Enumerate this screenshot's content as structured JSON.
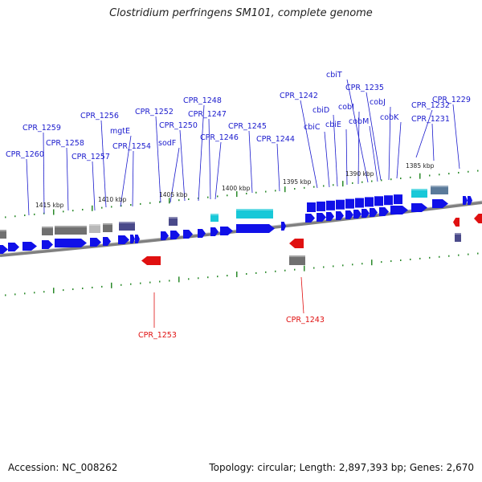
{
  "title": "Clostridium perfringens SM101, complete genome",
  "footer": {
    "accession": "Accession: NC_008262",
    "summary": "Topology: circular; Length: 2,897,393 bp; Genes: 2,670"
  },
  "colors": {
    "forward_cds": "#1010e8",
    "reverse_cds": "#e01010",
    "gene_dark": "#4a4a8a",
    "gene_gray": "#707070",
    "gene_cyan": "#18c8d8",
    "backbone": "#808080",
    "tick": "#2a8a2a",
    "label_forward": "#1a1acd",
    "label_reverse": "#e01010"
  },
  "scale": {
    "unit": "kbp",
    "ticks": [
      "1415 kbp",
      "1410 kbp",
      "1405 kbp",
      "1400 kbp",
      "1395 kbp",
      "1390 kbp",
      "1385 kbp"
    ]
  },
  "genes_forward": [
    "CPR_1260",
    "CPR_1259",
    "CPR_1258",
    "CPR_1257",
    "CPR_1256",
    "mgtE",
    "CPR_1254",
    "CPR_1252",
    "sodF",
    "CPR_1250",
    "CPR_1248",
    "CPR_1247",
    "CPR_1246",
    "CPR_1245",
    "CPR_1244",
    "CPR_1242",
    "cbiC",
    "cbiD",
    "cbiE",
    "cobI",
    "cbiT",
    "cobM",
    "CPR_1235",
    "cobJ",
    "cobK",
    "CPR_1232",
    "CPR_1231",
    "CPR_1229"
  ],
  "genes_reverse": [
    "CPR_1253",
    "CPR_1243"
  ]
}
